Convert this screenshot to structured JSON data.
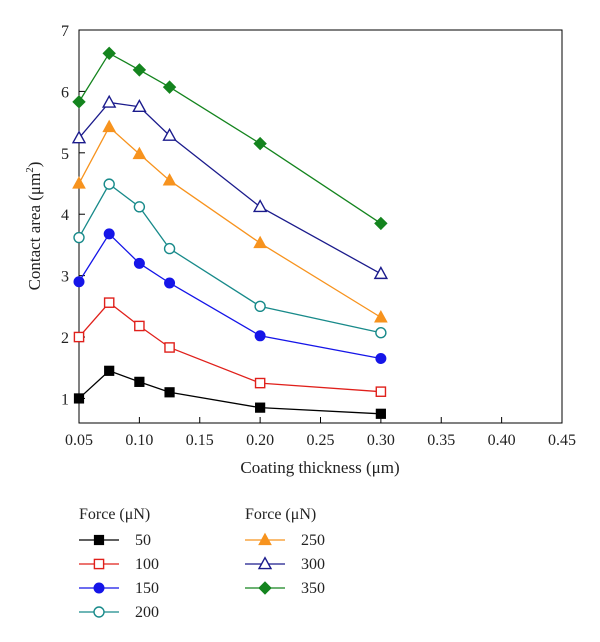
{
  "chart_data": {
    "type": "line",
    "xlabel": "Coating thickness (μm)",
    "ylabel_text": "Contact area (μm",
    "ylabel_sup": "2",
    "ylabel_close": ")",
    "xlim": [
      0.05,
      0.45
    ],
    "ylim": [
      0.6,
      7
    ],
    "xticks": [
      0.05,
      0.1,
      0.15,
      0.2,
      0.25,
      0.3,
      0.35,
      0.4,
      0.45
    ],
    "xtick_labels": [
      "0.05",
      "0.10",
      "0.15",
      "0.20",
      "0.25",
      "0.30",
      "0.35",
      "0.40",
      "0.45"
    ],
    "yticks": [
      1,
      2,
      3,
      4,
      5,
      6,
      7
    ],
    "ytick_labels": [
      "1",
      "2",
      "3",
      "4",
      "5",
      "6",
      "7"
    ],
    "x": [
      0.05,
      0.075,
      0.1,
      0.125,
      0.2,
      0.3
    ],
    "series": [
      {
        "name": "50",
        "color": "#000000",
        "marker": "square-filled",
        "values": [
          1.0,
          1.45,
          1.27,
          1.1,
          0.85,
          0.75
        ]
      },
      {
        "name": "100",
        "color": "#e0201b",
        "marker": "square-open",
        "values": [
          2.0,
          2.56,
          2.18,
          1.83,
          1.25,
          1.11
        ]
      },
      {
        "name": "150",
        "color": "#1515e8",
        "marker": "circle-filled",
        "values": [
          2.9,
          3.68,
          3.2,
          2.88,
          2.02,
          1.65
        ]
      },
      {
        "name": "200",
        "color": "#188a8a",
        "marker": "circle-open",
        "values": [
          3.62,
          4.49,
          4.12,
          3.44,
          2.5,
          2.07
        ]
      },
      {
        "name": "250",
        "color": "#f7931e",
        "marker": "triangle-filled",
        "values": [
          4.5,
          5.42,
          4.98,
          4.55,
          3.53,
          2.32
        ]
      },
      {
        "name": "300",
        "color": "#1b1b8c",
        "marker": "triangle-open",
        "values": [
          5.24,
          5.82,
          5.75,
          5.28,
          4.12,
          3.03
        ]
      },
      {
        "name": "350",
        "color": "#14841e",
        "marker": "diamond-filled",
        "values": [
          5.83,
          6.62,
          6.35,
          6.07,
          5.15,
          3.85
        ]
      }
    ],
    "legend": {
      "groups": [
        {
          "title": "Force (μN)",
          "series": [
            0,
            1,
            2,
            3
          ]
        },
        {
          "title": "Force (μN)",
          "series": [
            4,
            5,
            6
          ]
        }
      ]
    },
    "grid": false
  }
}
